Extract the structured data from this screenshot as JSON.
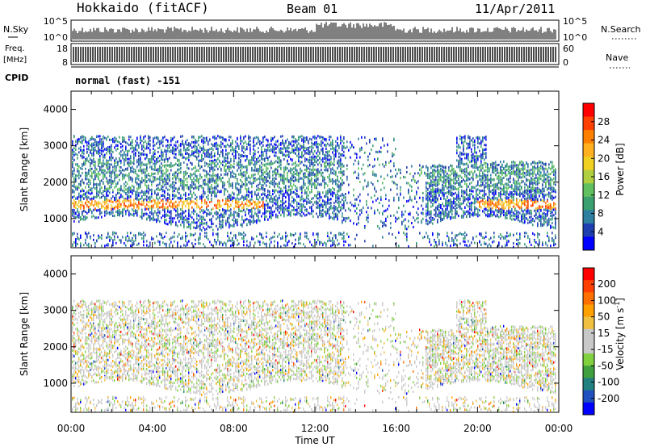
{
  "header": {
    "station": "Hokkaido (fitACF)",
    "beam": "Beam 01",
    "date": "11/Apr/2011"
  },
  "strips": {
    "nsky_label": "N.Sky",
    "nsky_ticks": [
      "10^5",
      "10^0"
    ],
    "nsearch_label": "N.Search",
    "freq_label": "Freq.",
    "freq_unit": "[MHz]",
    "freq_ticks": [
      "18",
      "8"
    ],
    "nave_ticks": [
      "60",
      "0"
    ],
    "nave_label": "Nave",
    "cpid_label": "CPID",
    "cpid_text": "normal (fast) -151"
  },
  "chart_data": [
    {
      "type": "heatmap",
      "panel": "power",
      "ylabel": "Slant Range [km]",
      "xlabel": "Time UT",
      "ylim": [
        200,
        4500
      ],
      "xlim": [
        "00:00",
        "24:00"
      ],
      "yticks": [
        "1000",
        "2000",
        "3000",
        "4000"
      ],
      "xticks": [
        "00:00",
        "04:00",
        "08:00",
        "12:00",
        "16:00",
        "20:00",
        "00:00"
      ],
      "colorbar_label": "Power [dB]",
      "colorbar_ticks": [
        "28",
        "24",
        "20",
        "16",
        "12",
        "8",
        "4"
      ],
      "colorbar_colors": [
        "#0000ff",
        "#1f3fb0",
        "#2e7fa0",
        "#3aa070",
        "#60c060",
        "#b0d040",
        "#f0d020",
        "#ffb020",
        "#ff8000",
        "#ff4000",
        "#ff0000"
      ],
      "features": [
        {
          "range_km": 1400,
          "intensity_db": 22,
          "from_hour": 0,
          "to_hour": 9.5
        },
        {
          "range_km": 1400,
          "intensity_db": 18,
          "from_hour": 20,
          "to_hour": 24
        },
        {
          "range_km": 2100,
          "intensity_db": 8,
          "from_hour": 0,
          "to_hour": 22
        }
      ]
    },
    {
      "type": "heatmap",
      "panel": "velocity",
      "ylabel": "Slant Range [km]",
      "xlabel": "Time UT",
      "ylim": [
        200,
        4500
      ],
      "xlim": [
        "00:00",
        "24:00"
      ],
      "yticks": [
        "1000",
        "2000",
        "3000",
        "4000"
      ],
      "xticks": [
        "00:00",
        "04:00",
        "08:00",
        "12:00",
        "16:00",
        "20:00",
        "00:00"
      ],
      "colorbar_label": "Velocity [m s-1]",
      "colorbar_label_main": "Velocity [m s",
      "colorbar_label_exp": "-1",
      "colorbar_label_end": "]",
      "colorbar_ticks": [
        "200",
        "100",
        "50",
        "15",
        "-15",
        "-50",
        "-100",
        "-200"
      ],
      "colorbar_colors": [
        "#0000ff",
        "#2050c0",
        "#208080",
        "#40a040",
        "#80d040",
        "#c8c8c8",
        "#c8c8c8",
        "#f0c040",
        "#ffa000",
        "#ff7000",
        "#ff4000",
        "#ff0000"
      ]
    }
  ],
  "xlabel": "Time UT"
}
